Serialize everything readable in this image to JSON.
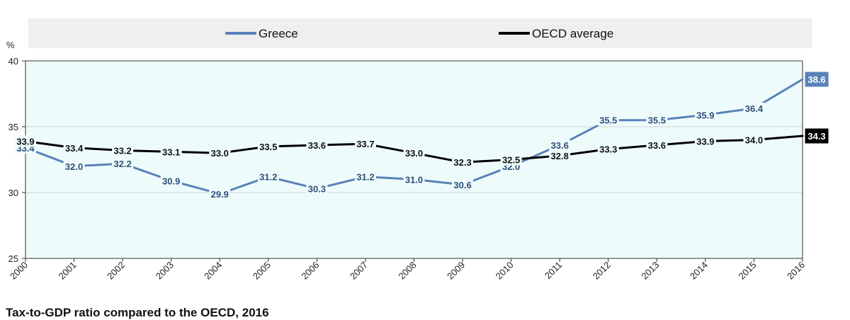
{
  "chart_data": {
    "type": "line",
    "title": "Tax-to-GDP ratio compared to the OECD, 2016",
    "ylabel": "%",
    "xlabel": "",
    "ylim": [
      25,
      40
    ],
    "yticks": [
      25,
      30,
      35,
      40
    ],
    "grid": true,
    "legend_position": "top",
    "x": [
      "2000",
      "2001",
      "2002",
      "2003",
      "2004",
      "2005",
      "2006",
      "2007",
      "2008",
      "2009",
      "2010",
      "2011",
      "2012",
      "2013",
      "2014",
      "2015",
      "2016"
    ],
    "series": [
      {
        "name": "Greece",
        "color": "#5a82b9",
        "label_color": "#2f4f7a",
        "values": [
          33.4,
          32.0,
          32.2,
          30.9,
          29.9,
          31.2,
          30.3,
          31.2,
          31.0,
          30.6,
          32.0,
          33.6,
          35.5,
          35.5,
          35.9,
          36.4,
          38.6
        ],
        "labels": [
          "33.4",
          "32.0",
          "32.2",
          "30.9",
          "29.9",
          "31.2",
          "30.3",
          "31.2",
          "31.0",
          "30.6",
          "32.0",
          "33.6",
          "35.5",
          "35.5",
          "35.9",
          "36.4",
          "38.6"
        ]
      },
      {
        "name": "OECD average",
        "color": "#000000",
        "label_color": "#111111",
        "values": [
          33.9,
          33.4,
          33.2,
          33.1,
          33.0,
          33.5,
          33.6,
          33.7,
          33.0,
          32.3,
          32.5,
          32.8,
          33.3,
          33.6,
          33.9,
          34.0,
          34.3
        ],
        "labels": [
          "33.9",
          "33.4",
          "33.2",
          "33.1",
          "33.0",
          "33.5",
          "33.6",
          "33.7",
          "33.0",
          "32.3",
          "32.5",
          "32.8",
          "33.3",
          "33.6",
          "33.9",
          "34.0",
          "34.3"
        ]
      }
    ],
    "plot_background": "#eefbfb",
    "legend_background": "#efefef"
  }
}
